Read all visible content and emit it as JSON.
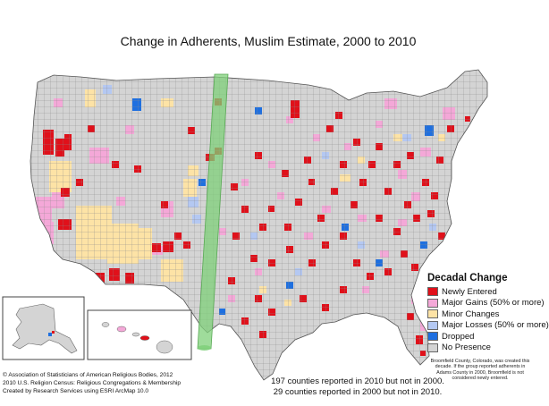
{
  "title": "Change in Adherents, Muslim Estimate, 2000 to 2010",
  "legend": {
    "title": "Decadal Change",
    "items": [
      {
        "label": "Newly Entered",
        "color": "#e0101a",
        "icon": "red-square"
      },
      {
        "label": "Major Gains (50% or more)",
        "color": "#f4a8d8",
        "icon": "pink-square"
      },
      {
        "label": "Minor Changes",
        "color": "#fde3a6",
        "icon": "tan-square"
      },
      {
        "label": "Major Losses (50% or more)",
        "color": "#b4c8f2",
        "icon": "light-blue-square"
      },
      {
        "label": "Dropped",
        "color": "#1e6fe0",
        "icon": "blue-square"
      },
      {
        "label": "No Presence",
        "color": "#d4d4d4",
        "icon": "gray-square"
      }
    ],
    "note": "Broomfield County, Colorado, was created this decade. If the group reported adherents in Adams County in 2000, Broomfield is not considered newly entered."
  },
  "notes": {
    "line1": "197 counties reported in 2010 but not in 2000.",
    "line2": "29 counties reported in 2000 but not in 2010."
  },
  "credits": {
    "line1": "© Association of Statisticians of American Religious Bodies, 2012",
    "line2": "2010 U.S. Religion Census: Religious Congregations & Membership",
    "line3": "Created by Research Services using ESRI ArcMap 10.0"
  },
  "colors": {
    "background": "#ffffff",
    "land": "#d4d4d4",
    "county_border": "#8a8a8a",
    "highlight_band": "#7fd07a"
  }
}
